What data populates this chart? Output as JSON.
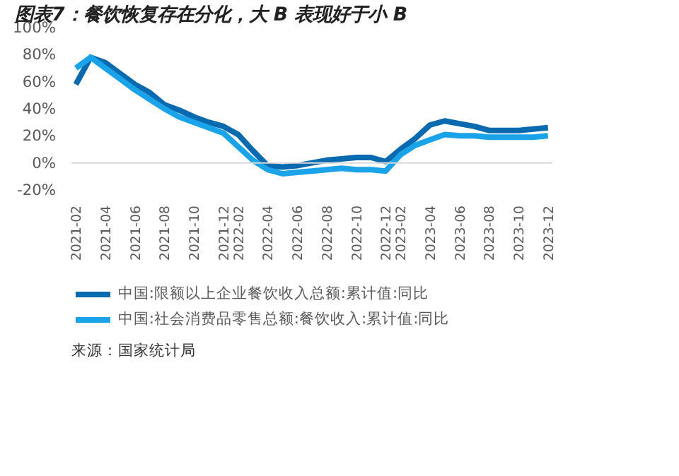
{
  "chart_data": {
    "type": "line",
    "title": "图表7：餐饮恢复存在分化，大 B 表现好于小 B",
    "categories": [
      "2021-02",
      null,
      "2021-04",
      null,
      "2021-06",
      null,
      "2021-08",
      null,
      "2021-10",
      null,
      "2021-12",
      "2022-02",
      null,
      "2022-04",
      null,
      "2022-06",
      null,
      "2022-08",
      null,
      "2022-10",
      null,
      "2022-12",
      "2023-02",
      null,
      "2023-04",
      null,
      "2023-06",
      null,
      "2023-08",
      null,
      "2023-10",
      null,
      "2023-12"
    ],
    "series": [
      {
        "name": "中国:限额以上企业餐饮收入总额:累计值:同比",
        "color": "#0a6ab0",
        "values": [
          58,
          78,
          74,
          66,
          58,
          52,
          43,
          39,
          34,
          30,
          27,
          21,
          9,
          -2,
          -3,
          -2,
          0,
          2,
          3,
          4,
          4,
          1,
          10,
          18,
          28,
          31,
          29,
          27,
          24,
          24,
          24,
          25,
          26
        ]
      },
      {
        "name": "中国:社会消费品零售总额:餐饮收入:累计值:同比",
        "color": "#1aa3e8",
        "values": [
          70,
          78,
          70,
          62,
          54,
          47,
          40,
          34,
          30,
          26,
          22,
          12,
          2,
          -5,
          -8,
          -7,
          -6,
          -5,
          -4,
          -5,
          -5,
          -6,
          6,
          13,
          17,
          21,
          20,
          20,
          19,
          19,
          19,
          19,
          20
        ]
      }
    ],
    "ylim": [
      -20,
      100
    ],
    "yticks": [
      {
        "value": -20,
        "label": "-20%"
      },
      {
        "value": 0,
        "label": "0%"
      },
      {
        "value": 20,
        "label": "20%"
      },
      {
        "value": 40,
        "label": "40%"
      },
      {
        "value": 60,
        "label": "60%"
      },
      {
        "value": 80,
        "label": "80%"
      },
      {
        "value": 100,
        "label": "100%"
      }
    ],
    "ref_lines": [
      {
        "axis": "y",
        "value": 0,
        "label": null,
        "color": "#d9d9d9"
      }
    ],
    "grid": false,
    "legend": "bottom",
    "annotations": [
      "来源：国家统计局"
    ]
  }
}
